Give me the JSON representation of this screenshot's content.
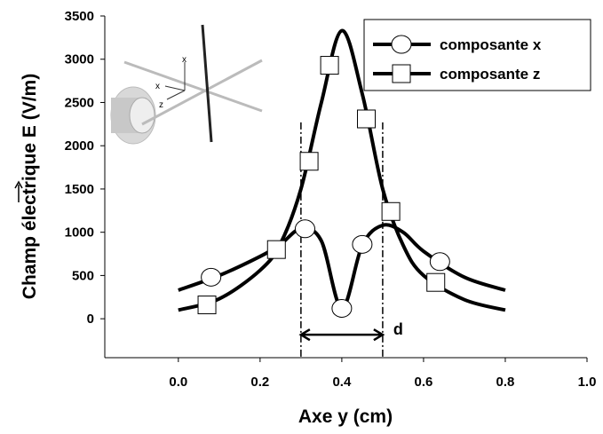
{
  "chart_data": {
    "type": "line",
    "x_label": "Axe y (cm)",
    "y_label": "Champ électrique E (V/m)",
    "xlim": [
      -0.18,
      1.0
    ],
    "ylim": [
      -450,
      3500
    ],
    "xticks": [
      {
        "value": 0,
        "label": "0.0"
      },
      0.2,
      0.4,
      0.6,
      0.8,
      {
        "value": 1,
        "label": "1.0"
      }
    ],
    "yticks": [
      0,
      500,
      1000,
      1500,
      2000,
      2500,
      3000,
      3500
    ],
    "x": [
      0,
      0.1,
      0.2,
      0.25,
      0.3,
      0.35,
      0.4,
      0.45,
      0.5,
      0.55,
      0.6,
      0.7,
      0.8
    ],
    "series": [
      {
        "name": "composante x",
        "color": "#000000",
        "marker": "circle",
        "values": [
          330,
          500,
          720,
          860,
          1040,
          900,
          120,
          850,
          1080,
          1000,
          780,
          480,
          330
        ],
        "markers": {
          "x": [
            0.08,
            0.31,
            0.4,
            0.45,
            0.64
          ],
          "values": [
            480,
            1040,
            120,
            860,
            660
          ]
        }
      },
      {
        "name": "composante z",
        "color": "#000000",
        "marker": "square",
        "values": [
          100,
          230,
          560,
          870,
          1500,
          2500,
          3330,
          2600,
          1500,
          850,
          500,
          220,
          100
        ],
        "markers": {
          "x": [
            0.07,
            0.24,
            0.32,
            0.37,
            0.46,
            0.52,
            0.63
          ],
          "values": [
            160,
            800,
            1820,
            2930,
            2310,
            1240,
            420
          ]
        }
      }
    ],
    "bracket": {
      "label": "d",
      "x": [
        0.3,
        0.5
      ],
      "y_range": [
        -450,
        2270
      ],
      "arrow_y": -185
    },
    "inset": {
      "labels": [
        "x",
        "x",
        "z"
      ]
    }
  }
}
